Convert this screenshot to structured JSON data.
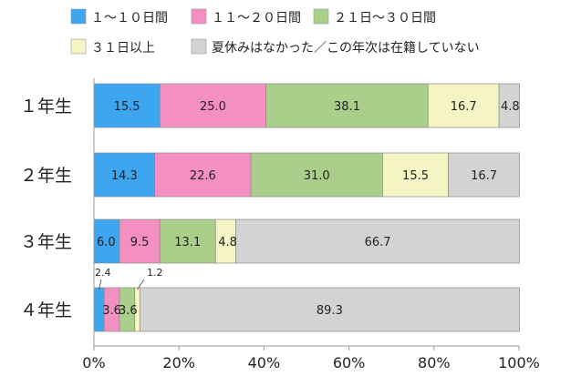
{
  "chart_data": {
    "type": "bar",
    "orientation": "horizontal",
    "stacked": true,
    "categories": [
      "１年生",
      "２年生",
      "３年生",
      "４年生"
    ],
    "series": [
      {
        "name": "１～１０日間",
        "color": "#3ea6f0",
        "values": [
          15.5,
          14.3,
          6.0,
          2.4
        ]
      },
      {
        "name": "１１～２０日間",
        "color": "#f48fc1",
        "values": [
          25.0,
          22.6,
          9.5,
          3.6
        ]
      },
      {
        "name": "２１日～３０日間",
        "color": "#a9cf8a",
        "values": [
          38.1,
          31.0,
          13.1,
          3.6
        ]
      },
      {
        "name": "３１日以上",
        "color": "#f4f4c4",
        "values": [
          16.7,
          15.5,
          4.8,
          1.2
        ]
      },
      {
        "name": "夏休みはなかった／この年次は在籍していない",
        "color": "#d3d3d3",
        "values": [
          4.8,
          16.7,
          66.7,
          89.3
        ]
      }
    ],
    "data_labels": [
      [
        "15.5",
        "25.0",
        "38.1",
        "16.7",
        "4.8"
      ],
      [
        "14.3",
        "22.6",
        "31.0",
        "15.5",
        "16.7"
      ],
      [
        "6.0",
        "9.5",
        "13.1",
        "4.8",
        "66.7"
      ],
      [
        "2.4",
        "3.6",
        "3.6",
        "1.2",
        "89.3"
      ]
    ],
    "xlim": [
      0,
      100
    ],
    "x_ticks": [
      "0%",
      "20%",
      "40%",
      "60%",
      "80%",
      "100%"
    ],
    "legend_position": "top",
    "grid": false
  }
}
